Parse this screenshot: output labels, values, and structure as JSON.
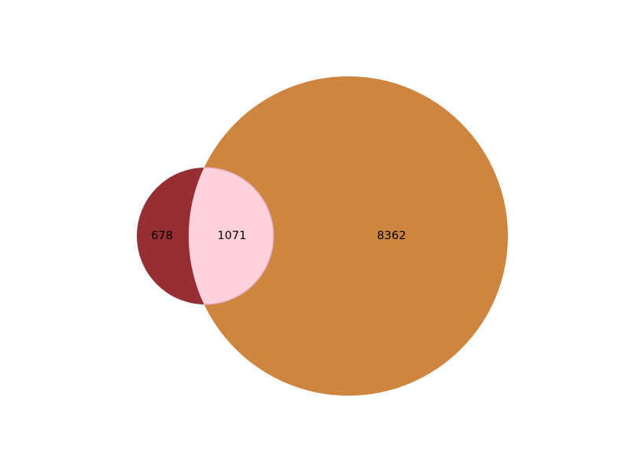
{
  "venn": {
    "colors": {
      "left_only": "#962F34",
      "right_only": "#CD853F",
      "intersection": "#FFD1DC",
      "intersection_edge": "#E8A7B8"
    },
    "regions": {
      "left_only": "678",
      "intersection": "1071",
      "right_only": "8362"
    }
  }
}
